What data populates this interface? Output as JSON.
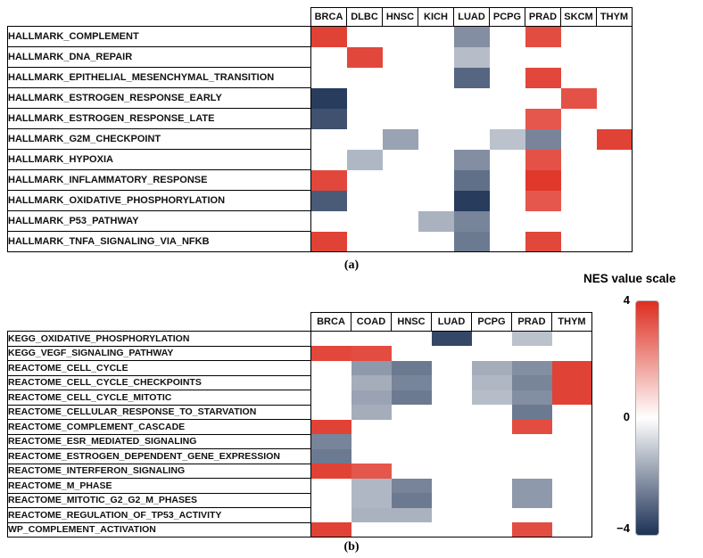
{
  "captions": {
    "panel_a": "(a)",
    "panel_b": "(b)"
  },
  "legend": {
    "title": "NES value scale",
    "max_label": "4",
    "mid_label": "0",
    "min_label": "−4",
    "abs_max": 4,
    "max_color": "#de2d20",
    "mid_color": "#ffffff",
    "min_color": "#1d3256"
  },
  "chart_data": [
    {
      "type": "heatmap",
      "panel": "a",
      "value_name": "NES",
      "value_range": [
        -4,
        4
      ],
      "columns": [
        "BRCA",
        "DLBC",
        "HNSC",
        "KICH",
        "LUAD",
        "PCPG",
        "PRAD",
        "SKCM",
        "THYM"
      ],
      "rows": [
        "HALLMARK_COMPLEMENT",
        "HALLMARK_DNA_REPAIR",
        "HALLMARK_EPITHELIAL_MESENCHYMAL_TRANSITION",
        "HALLMARK_ESTROGEN_RESPONSE_EARLY",
        "HALLMARK_ESTROGEN_RESPONSE_LATE",
        "HALLMARK_G2M_CHECKPOINT",
        "HALLMARK_HYPOXIA",
        "HALLMARK_INFLAMMATORY_RESPONSE",
        "HALLMARK_OXIDATIVE_PHOSPHORYLATION",
        "HALLMARK_P53_PATHWAY",
        "HALLMARK_TNFA_SIGNALING_VIA_NFKB"
      ],
      "values": [
        [
          3.6,
          null,
          null,
          null,
          -2.2,
          null,
          3.4,
          null,
          null
        ],
        [
          null,
          3.5,
          null,
          null,
          -1.3,
          null,
          null,
          null,
          null
        ],
        [
          null,
          null,
          null,
          null,
          -3.0,
          null,
          3.5,
          null,
          null
        ],
        [
          -3.8,
          null,
          null,
          null,
          null,
          null,
          null,
          3.3,
          null
        ],
        [
          -3.4,
          null,
          null,
          null,
          null,
          null,
          3.2,
          null,
          null
        ],
        [
          null,
          null,
          -1.8,
          null,
          null,
          -1.2,
          -2.4,
          null,
          3.6
        ],
        [
          null,
          -1.4,
          null,
          null,
          -2.2,
          null,
          3.3,
          null,
          null
        ],
        [
          3.5,
          null,
          null,
          null,
          -2.8,
          null,
          3.8,
          null,
          null
        ],
        [
          -3.2,
          null,
          null,
          null,
          -3.8,
          null,
          3.2,
          null,
          null
        ],
        [
          null,
          null,
          null,
          -1.5,
          -2.4,
          null,
          null,
          null,
          null
        ],
        [
          3.6,
          null,
          null,
          null,
          -2.6,
          null,
          3.5,
          null,
          null
        ]
      ]
    },
    {
      "type": "heatmap",
      "panel": "b",
      "value_name": "NES",
      "value_range": [
        -4,
        4
      ],
      "columns": [
        "BRCA",
        "COAD",
        "HNSC",
        "LUAD",
        "PCPG",
        "PRAD",
        "THYM"
      ],
      "rows": [
        "KEGG_OXIDATIVE_PHOSPHORYLATION",
        "KEGG_VEGF_SIGNALING_PATHWAY",
        "REACTOME_CELL_CYCLE",
        "REACTOME_CELL_CYCLE_CHECKPOINTS",
        "REACTOME_CELL_CYCLE_MITOTIC",
        "REACTOME_CELLULAR_RESPONSE_TO_STARVATION",
        "REACTOME_COMPLEMENT_CASCADE",
        "REACTOME_ESR_MEDIATED_SIGNALING",
        "REACTOME_ESTROGEN_DEPENDENT_GENE_EXPRESSION",
        "REACTOME_INTERFERON_SIGNALING",
        "REACTOME_M_PHASE",
        "REACTOME_MITOTIC_G2_G2_M_PHASES",
        "REACTOME_REGULATION_OF_TP53_ACTIVITY",
        "WP_COMPLEMENT_ACTIVATION"
      ],
      "values": [
        [
          null,
          null,
          null,
          -3.6,
          null,
          -1.2,
          null
        ],
        [
          3.5,
          3.4,
          null,
          null,
          null,
          null,
          null
        ],
        [
          null,
          -2.0,
          -2.6,
          null,
          -1.6,
          -2.2,
          3.6
        ],
        [
          null,
          -1.6,
          -2.4,
          null,
          -1.4,
          -2.4,
          3.6
        ],
        [
          null,
          -1.8,
          -2.6,
          null,
          -1.3,
          -2.2,
          3.6
        ],
        [
          null,
          -1.6,
          null,
          null,
          null,
          -2.6,
          null
        ],
        [
          3.6,
          null,
          null,
          null,
          null,
          3.4,
          null
        ],
        [
          -2.4,
          null,
          null,
          null,
          null,
          null,
          null
        ],
        [
          -2.6,
          null,
          null,
          null,
          null,
          null,
          null
        ],
        [
          3.6,
          3.2,
          null,
          null,
          null,
          null,
          null
        ],
        [
          null,
          -1.4,
          -2.4,
          null,
          null,
          -2.0,
          null
        ],
        [
          null,
          -1.4,
          -2.6,
          null,
          null,
          -2.0,
          null
        ],
        [
          null,
          -1.5,
          -1.5,
          null,
          null,
          null,
          null
        ],
        [
          3.6,
          null,
          null,
          null,
          null,
          3.4,
          null
        ]
      ]
    }
  ]
}
